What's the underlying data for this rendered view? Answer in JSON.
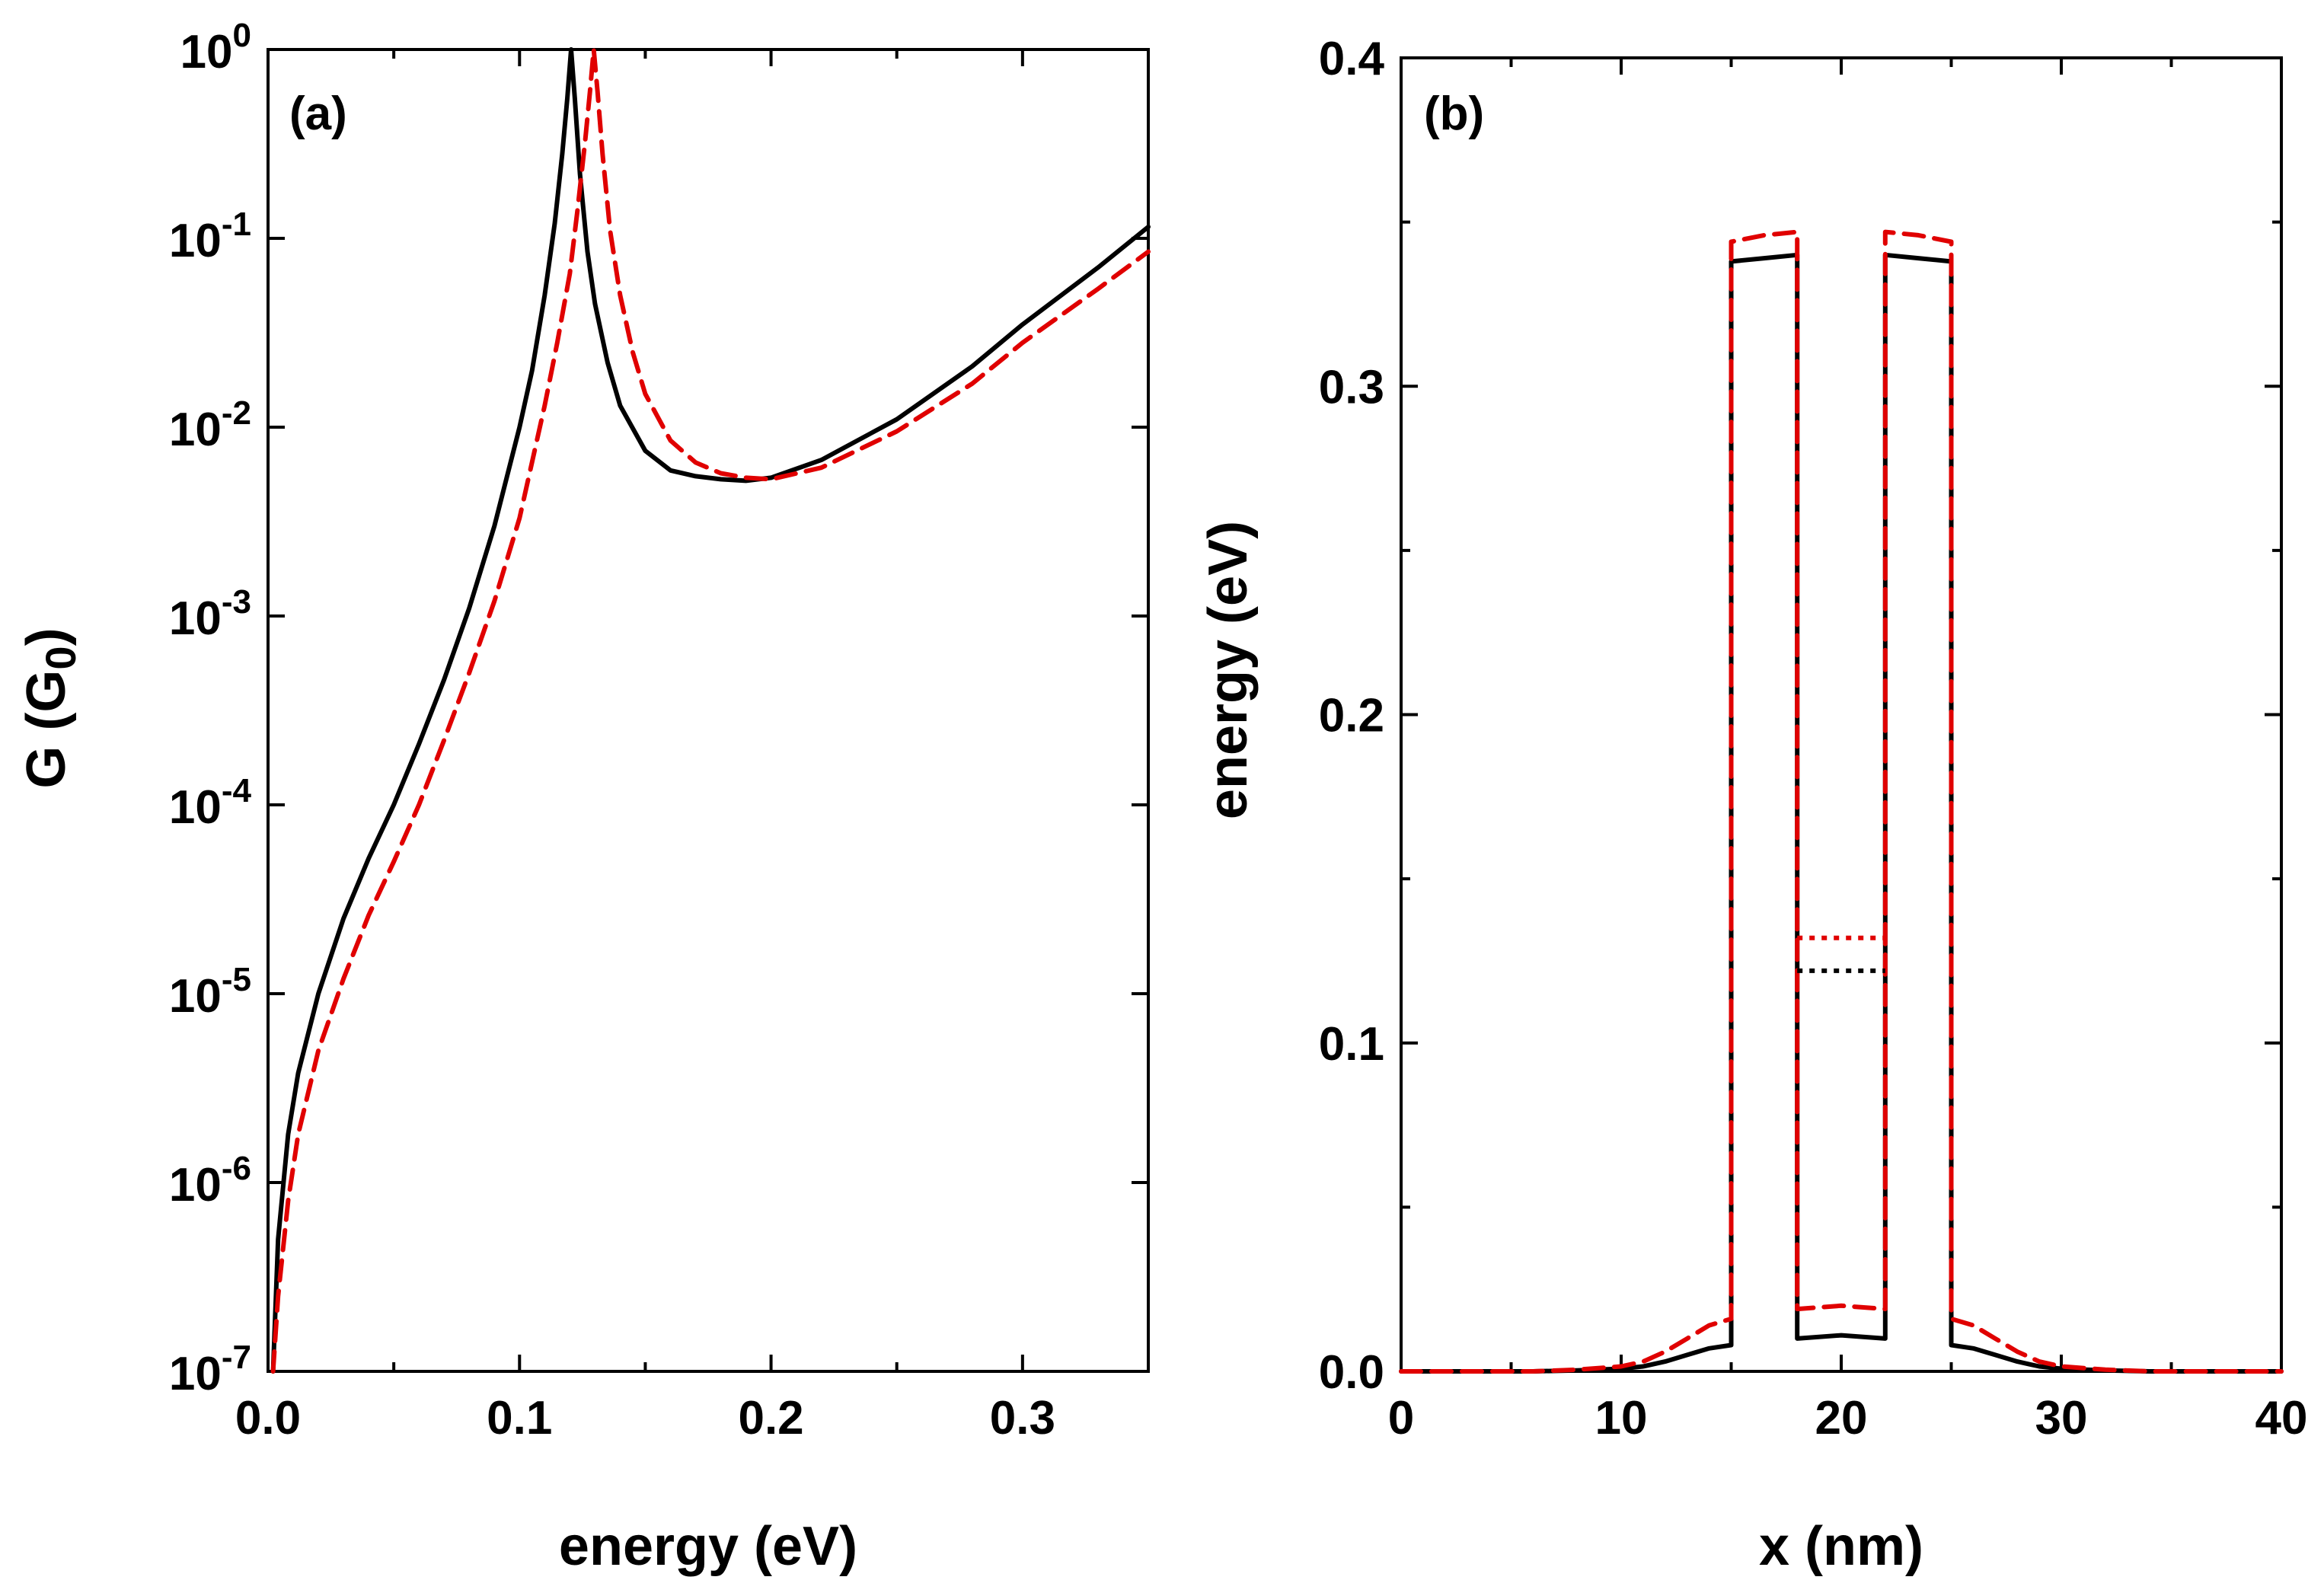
{
  "colors": {
    "black_series": "#000000",
    "red_series": "#e00000",
    "axes": "#000000",
    "background": "#ffffff"
  },
  "chart_data": [
    {
      "type": "line",
      "panel_label": "(a)",
      "xlabel": "energy (eV)",
      "ylabel": {
        "main": "G (G",
        "sub": "0",
        "close": ")"
      },
      "xscale": "linear",
      "yscale": "log",
      "xlim": [
        0.0,
        0.35
      ],
      "ylim": [
        1e-07,
        1
      ],
      "x_ticks": [
        0.0,
        0.1,
        0.2,
        0.3
      ],
      "x_tick_labels": [
        "0.0",
        "0.1",
        "0.2",
        "0.3"
      ],
      "y_ticks": [
        1e-07,
        1e-06,
        1e-05,
        0.0001,
        0.001,
        0.01,
        0.1,
        1
      ],
      "y_tick_labels": [
        {
          "base": "10",
          "exp": "-7"
        },
        {
          "base": "10",
          "exp": "-6"
        },
        {
          "base": "10",
          "exp": "-5"
        },
        {
          "base": "10",
          "exp": "-4"
        },
        {
          "base": "10",
          "exp": "-3"
        },
        {
          "base": "10",
          "exp": "-2"
        },
        {
          "base": "10",
          "exp": "-1"
        },
        {
          "base": "10",
          "exp": "0"
        }
      ],
      "series": [
        {
          "name": "solid",
          "style": "solid",
          "color": "#000000",
          "x": [
            0.002,
            0.004,
            0.008,
            0.012,
            0.02,
            0.03,
            0.04,
            0.05,
            0.06,
            0.07,
            0.08,
            0.09,
            0.1,
            0.105,
            0.11,
            0.114,
            0.117,
            0.119,
            0.1205,
            0.122,
            0.124,
            0.127,
            0.13,
            0.135,
            0.14,
            0.15,
            0.16,
            0.17,
            0.18,
            0.19,
            0.2,
            0.22,
            0.25,
            0.28,
            0.3,
            0.33,
            0.35
          ],
          "y": [
            1e-07,
            5e-07,
            1.8e-06,
            3.8e-06,
            1e-05,
            2.5e-05,
            5.2e-05,
            0.0001,
            0.00021,
            0.00046,
            0.0011,
            0.003,
            0.01,
            0.02,
            0.05,
            0.12,
            0.28,
            0.55,
            1.0,
            0.55,
            0.22,
            0.085,
            0.045,
            0.022,
            0.013,
            0.0075,
            0.0059,
            0.0055,
            0.0053,
            0.0052,
            0.0054,
            0.0067,
            0.011,
            0.021,
            0.035,
            0.07,
            0.115
          ]
        },
        {
          "name": "dashed",
          "style": "dashed",
          "color": "#e00000",
          "x": [
            0.002,
            0.004,
            0.008,
            0.012,
            0.02,
            0.03,
            0.04,
            0.05,
            0.06,
            0.07,
            0.08,
            0.09,
            0.1,
            0.11,
            0.115,
            0.12,
            0.123,
            0.126,
            0.128,
            0.1295,
            0.131,
            0.133,
            0.136,
            0.14,
            0.145,
            0.15,
            0.16,
            0.17,
            0.18,
            0.19,
            0.2,
            0.22,
            0.25,
            0.28,
            0.3,
            0.33,
            0.35
          ],
          "y": [
            1e-07,
            2.5e-07,
            8e-07,
            1.8e-06,
            5e-06,
            1.2e-05,
            2.6e-05,
            5e-05,
            0.0001,
            0.00022,
            0.0005,
            0.0012,
            0.0033,
            0.013,
            0.028,
            0.065,
            0.14,
            0.32,
            0.6,
            1.0,
            0.6,
            0.28,
            0.11,
            0.05,
            0.025,
            0.015,
            0.0085,
            0.0065,
            0.0057,
            0.0054,
            0.0053,
            0.0061,
            0.0095,
            0.017,
            0.028,
            0.054,
            0.085
          ]
        }
      ]
    },
    {
      "type": "line",
      "panel_label": "(b)",
      "xlabel": "x (nm)",
      "ylabel": "energy (eV)",
      "xscale": "linear",
      "yscale": "linear",
      "xlim": [
        0,
        40
      ],
      "ylim": [
        0.0,
        0.4
      ],
      "x_ticks": [
        0,
        10,
        20,
        30,
        40
      ],
      "x_tick_labels": [
        "0",
        "10",
        "20",
        "30",
        "40"
      ],
      "y_ticks": [
        0.0,
        0.1,
        0.2,
        0.3,
        0.4
      ],
      "y_tick_labels": [
        "0.0",
        "0.1",
        "0.2",
        "0.3",
        "0.4"
      ],
      "series": [
        {
          "name": "potential-solid",
          "style": "solid",
          "color": "#000000",
          "x": [
            0,
            6,
            8,
            10,
            11,
            12,
            13,
            14,
            15,
            15,
            16.5,
            18,
            18,
            20,
            22,
            22,
            23.5,
            25,
            25,
            26,
            27,
            28,
            29,
            30,
            32,
            34,
            40
          ],
          "y": [
            0,
            0,
            0.0003,
            0.0008,
            0.0015,
            0.003,
            0.005,
            0.007,
            0.008,
            0.338,
            0.339,
            0.34,
            0.01,
            0.011,
            0.01,
            0.34,
            0.339,
            0.338,
            0.008,
            0.007,
            0.005,
            0.003,
            0.0015,
            0.0008,
            0.0003,
            0,
            0
          ]
        },
        {
          "name": "potential-dashed",
          "style": "dashed",
          "color": "#e00000",
          "x": [
            0,
            6,
            8,
            10,
            11,
            12,
            13,
            14,
            15,
            15,
            16.5,
            18,
            18,
            20,
            22,
            22,
            23.5,
            25,
            25,
            26,
            27,
            28,
            29,
            30,
            32,
            34,
            40
          ],
          "y": [
            0,
            0,
            0.0005,
            0.0015,
            0.003,
            0.006,
            0.01,
            0.014,
            0.016,
            0.344,
            0.346,
            0.347,
            0.019,
            0.02,
            0.019,
            0.347,
            0.346,
            0.344,
            0.016,
            0.014,
            0.01,
            0.006,
            0.003,
            0.0015,
            0.0005,
            0,
            0
          ]
        },
        {
          "name": "level-black",
          "style": "dotted",
          "color": "#000000",
          "x": [
            18,
            22
          ],
          "y": [
            0.122,
            0.122
          ]
        },
        {
          "name": "level-red",
          "style": "dotted",
          "color": "#e00000",
          "x": [
            18,
            22
          ],
          "y": [
            0.132,
            0.132
          ]
        }
      ]
    }
  ]
}
